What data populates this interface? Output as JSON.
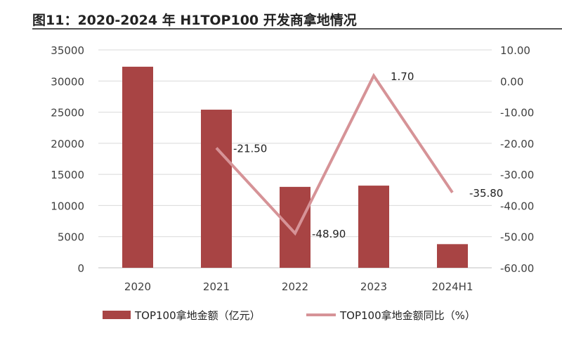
{
  "title": "图11：2020-2024 年 H1TOP100 开发商拿地情况",
  "chart_data": {
    "type": "bar",
    "categories": [
      "2020",
      "2021",
      "2022",
      "2023",
      "2024H1"
    ],
    "series": [
      {
        "name": "TOP100拿地金额（亿元）",
        "type": "bar",
        "axis": "left",
        "color": "#a84444",
        "values": [
          32300,
          25400,
          13000,
          13200,
          3800
        ]
      },
      {
        "name": "TOP100拿地金额同比（%）",
        "type": "line",
        "axis": "right",
        "color": "#d69397",
        "x": [
          "2021",
          "2022",
          "2023",
          "2024H1"
        ],
        "values": [
          -21.5,
          -48.9,
          1.7,
          -35.8
        ],
        "data_labels": [
          "-21.50",
          "-48.90",
          "1.70",
          "-35.80"
        ]
      }
    ],
    "y_left": {
      "range": [
        0,
        35000
      ],
      "ticks": [
        "0",
        "5000",
        "10000",
        "15000",
        "20000",
        "25000",
        "30000",
        "35000"
      ]
    },
    "y_right": {
      "range": [
        -60,
        10
      ],
      "ticks": [
        "-60.00",
        "-50.00",
        "-40.00",
        "-30.00",
        "-20.00",
        "-10.00",
        "0.00",
        "10.00"
      ]
    },
    "grid": true,
    "legend_position": "bottom"
  }
}
